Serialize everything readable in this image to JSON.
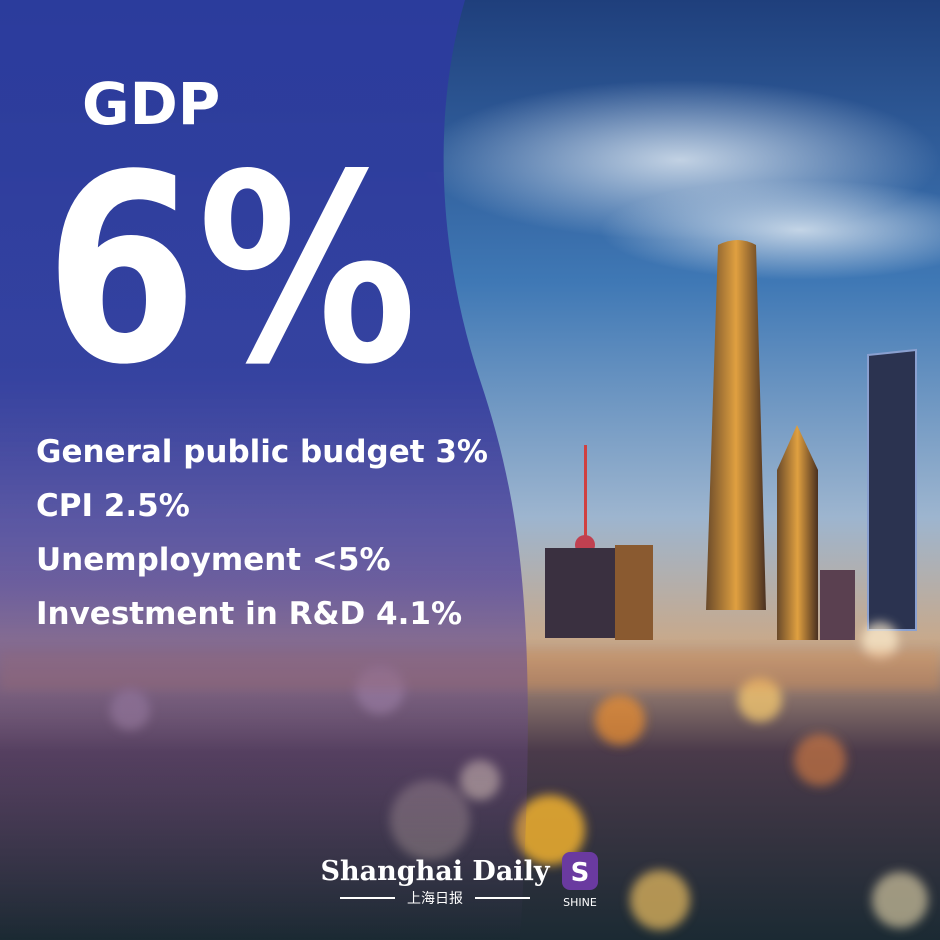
{
  "header": {
    "label": "GDP",
    "value": "6%"
  },
  "targets": [
    "General public budget 3%",
    "CPI 2.5%",
    "Unemployment <5%",
    "Investment in R&D 4.1%"
  ],
  "footer": {
    "brand": "Shanghai Daily",
    "brand_cn": "上海日报",
    "logo_letter": "S",
    "logo_text": "SHINE"
  }
}
